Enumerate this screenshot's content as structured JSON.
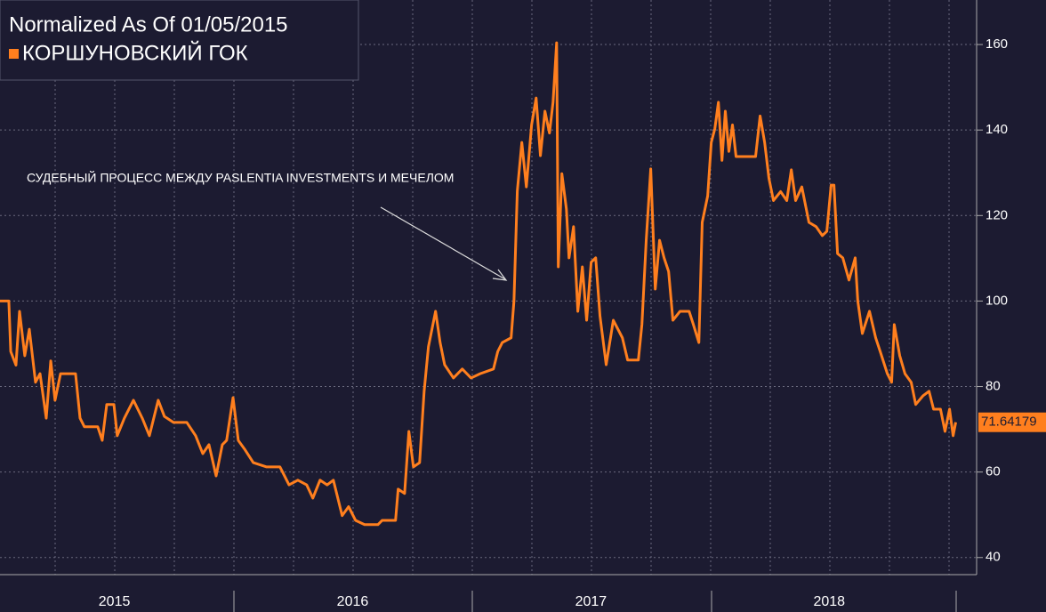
{
  "chart_data": {
    "type": "line",
    "title": "Normalized As Of 01/05/2015",
    "annotation": "СУДЕБНЫЙ ПРОЦЕСС МЕЖДУ PASLENTIA INVESTMENTS И МЕЧЕЛОМ",
    "xlim": [
      2015.02,
      2019.1
    ],
    "xticks": [
      {
        "value": 2015.5,
        "label": "2015"
      },
      {
        "value": 2016.5,
        "label": "2016"
      },
      {
        "value": 2017.5,
        "label": "2017"
      },
      {
        "value": 2018.5,
        "label": "2018"
      }
    ],
    "ylim": [
      36,
      170
    ],
    "yticks": [
      40,
      60,
      80,
      100,
      120,
      140,
      160
    ],
    "grid": true,
    "last_label": "71.64179",
    "x": [
      2015.02,
      2015.057,
      2015.065,
      2015.087,
      2015.102,
      2015.124,
      2015.143,
      2015.169,
      2015.188,
      2015.214,
      2015.233,
      2015.251,
      2015.274,
      2015.337,
      2015.356,
      2015.374,
      2015.43,
      2015.449,
      2015.468,
      2015.498,
      2015.512,
      2015.542,
      2015.58,
      2015.617,
      2015.647,
      2015.684,
      2015.71,
      2015.748,
      2015.804,
      2015.841,
      2015.871,
      2015.897,
      2015.927,
      2015.953,
      2015.971,
      2015.998,
      2016.02,
      2016.046,
      2016.083,
      2016.139,
      2016.195,
      2016.233,
      2016.27,
      2016.307,
      2016.333,
      2016.363,
      2016.393,
      2016.419,
      2016.456,
      2016.483,
      2016.512,
      2016.55,
      2016.606,
      2016.624,
      2016.68,
      2016.691,
      2016.718,
      2016.736,
      2016.755,
      2016.781,
      2016.8,
      2016.818,
      2016.848,
      2016.867,
      2016.886,
      2016.923,
      2016.96,
      2016.997,
      2017.035,
      2017.091,
      2017.109,
      2017.128,
      2017.165,
      2017.177,
      2017.191,
      2017.21,
      2017.229,
      2017.251,
      2017.27,
      2017.288,
      2017.307,
      2017.326,
      2017.341,
      2017.356,
      2017.363,
      2017.378,
      2017.397,
      2017.408,
      2017.427,
      2017.445,
      2017.464,
      2017.482,
      2017.501,
      2017.52,
      2017.538,
      2017.564,
      2017.594,
      2017.632,
      2017.654,
      2017.699,
      2017.714,
      2017.732,
      2017.751,
      2017.77,
      2017.788,
      2017.807,
      2017.826,
      2017.844,
      2017.874,
      2017.912,
      2017.93,
      2017.953,
      2017.967,
      2017.99,
      2018.005,
      2018.02,
      2018.035,
      2018.05,
      2018.064,
      2018.079,
      2018.094,
      2018.109,
      2018.154,
      2018.191,
      2018.21,
      2018.229,
      2018.247,
      2018.266,
      2018.296,
      2018.322,
      2018.341,
      2018.359,
      2018.385,
      2018.415,
      2018.445,
      2018.471,
      2018.49,
      2018.508,
      2018.52,
      2018.535,
      2018.557,
      2018.583,
      2018.609,
      2018.62,
      2018.639,
      2018.669,
      2018.695,
      2018.714,
      2018.744,
      2018.762,
      2018.773,
      2018.796,
      2018.818,
      2018.844,
      2018.863,
      2018.893,
      2018.919,
      2018.938,
      2018.967,
      2018.986,
      2019.005,
      2019.02,
      2019.031
    ],
    "series": [
      {
        "name": "КОРШУНОВСКИЙ ГОК",
        "color": "#ff7f1e",
        "values": [
          100,
          100,
          88.2,
          85,
          97.6,
          87.2,
          93.4,
          81,
          83,
          72.6,
          86,
          76.8,
          83,
          83,
          72.6,
          70.6,
          70.6,
          67.4,
          75.8,
          75.8,
          68.5,
          72.6,
          76.8,
          72.6,
          68.5,
          76.8,
          73,
          71.6,
          71.6,
          68.5,
          64.3,
          66.4,
          59.1,
          66.4,
          67.4,
          77.4,
          67.4,
          65.4,
          62.2,
          61.2,
          61.2,
          57,
          58.1,
          57,
          53.9,
          58.1,
          57,
          58.1,
          49.8,
          51.9,
          48.7,
          47.7,
          47.7,
          48.7,
          48.7,
          56,
          55,
          69.5,
          61.2,
          62.2,
          78.9,
          89.3,
          97.6,
          90.3,
          85.1,
          82,
          84.1,
          82,
          83,
          84.1,
          88.2,
          90.3,
          91.4,
          100,
          125.7,
          137.1,
          126.7,
          141.2,
          147.5,
          134,
          144.4,
          139.3,
          146.5,
          160.4,
          108,
          129.8,
          121.5,
          110.1,
          117.4,
          97.6,
          108,
          95.5,
          109.1,
          110.1,
          96.5,
          85.1,
          95.5,
          91.4,
          86.2,
          86.2,
          94.5,
          114.2,
          130.9,
          102.8,
          114.2,
          110.1,
          106.9,
          95.5,
          97.6,
          97.6,
          94.5,
          90.3,
          118.4,
          124.6,
          137.1,
          140.3,
          146.5,
          132.9,
          144.4,
          135,
          141.2,
          133.8,
          133.8,
          133.8,
          143.3,
          137.1,
          128.7,
          123.5,
          125.6,
          123.5,
          130.7,
          123.5,
          126.7,
          118.4,
          117.4,
          115.3,
          116.3,
          127.1,
          127.1,
          111.1,
          110.1,
          104.9,
          110.1,
          100,
          92.4,
          97.6,
          91.4,
          88.2,
          83,
          81,
          94.5,
          87.2,
          83,
          81,
          75.8,
          77.8,
          78.9,
          74.7,
          74.7,
          69.5,
          74.7,
          68.5,
          71.64179
        ]
      }
    ]
  }
}
